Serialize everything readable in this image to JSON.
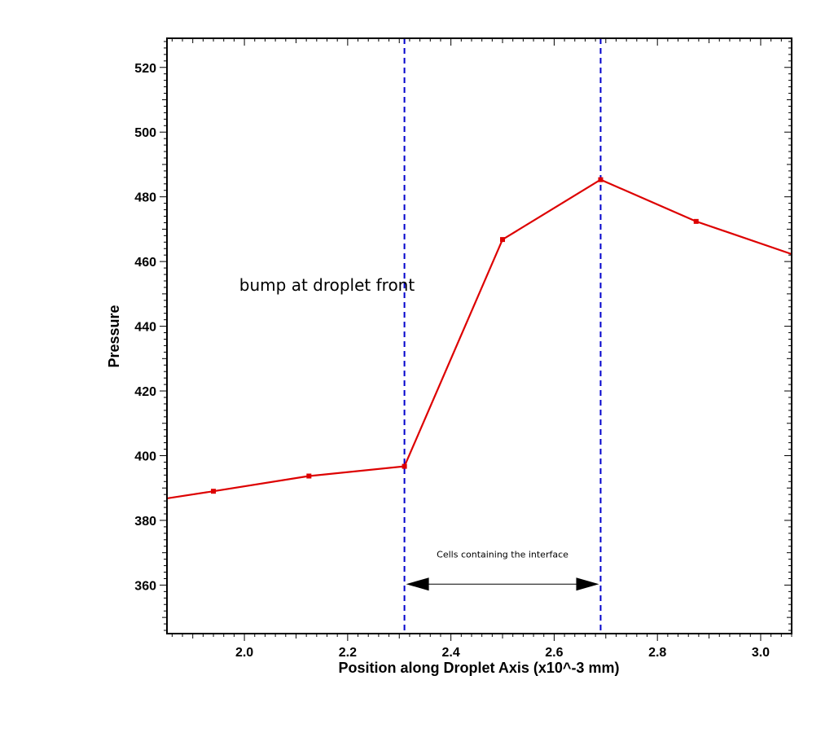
{
  "chart_data": {
    "type": "line",
    "xlabel": "Position along Droplet Axis (x10^-3 mm)",
    "ylabel": "Pressure",
    "xlim": [
      1.85,
      3.06
    ],
    "ylim": [
      345,
      529
    ],
    "x_ticks": [
      2.0,
      2.2,
      2.4,
      2.6,
      2.8,
      3.0
    ],
    "x_tick_labels": [
      "2.0",
      "2.2",
      "2.4",
      "2.6",
      "2.8",
      "3.0"
    ],
    "y_ticks": [
      360,
      380,
      400,
      420,
      440,
      460,
      480,
      500,
      520
    ],
    "y_tick_labels": [
      "360",
      "380",
      "400",
      "420",
      "440",
      "460",
      "480",
      "500",
      "520"
    ],
    "grid": false,
    "series": [
      {
        "color": "#dd0000",
        "x": [
          1.85,
          1.94,
          2.125,
          2.31,
          2.5,
          2.69,
          2.875,
          3.06
        ],
        "y": [
          386.8,
          389.0,
          393.7,
          396.7,
          466.8,
          485.3,
          472.4,
          462.3
        ],
        "markers": [
          false,
          true,
          true,
          true,
          true,
          true,
          true,
          false
        ]
      }
    ],
    "vlines": [
      {
        "x": 2.31,
        "color": "#0000cc",
        "style": "dashed"
      },
      {
        "x": 2.69,
        "color": "#0000cc",
        "style": "dashed"
      }
    ],
    "annotations": [
      {
        "text": "bump at droplet front",
        "x": 2.16,
        "y": 451
      },
      {
        "text": "Cells containing the interface",
        "x": 2.5,
        "y": 368.5
      }
    ],
    "arrow": {
      "x_start": 2.31,
      "x_end": 2.69,
      "y": 360.3,
      "color": "#000000"
    }
  }
}
